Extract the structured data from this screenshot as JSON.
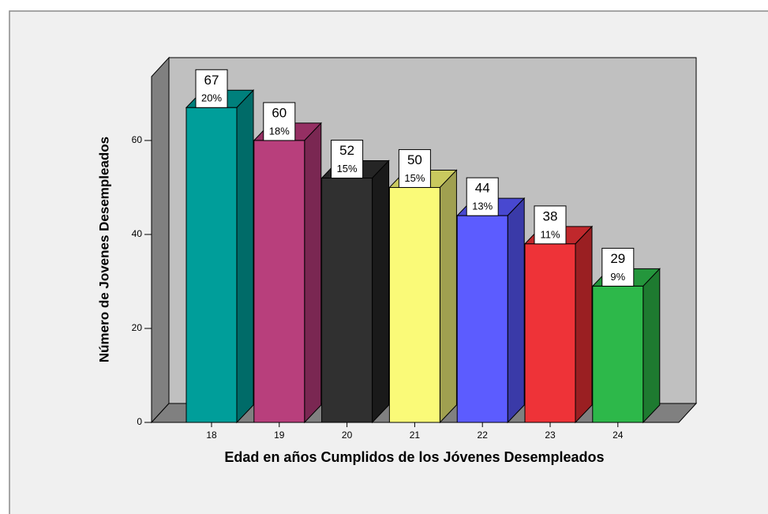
{
  "chart_data": {
    "type": "bar",
    "x_label": "Edad en años Cumplidos de los Jóvenes Desempleados",
    "y_label": "Número de Jovenes Desempleados",
    "categories": [
      "18",
      "19",
      "20",
      "21",
      "22",
      "23",
      "24"
    ],
    "values": [
      67,
      60,
      52,
      50,
      44,
      38,
      29
    ],
    "percent": {
      "values": [
        20,
        18,
        15,
        15,
        13,
        11,
        9
      ],
      "value_labels": [
        "20%",
        "18%",
        "15%",
        "15%",
        "13%",
        "11%",
        "9%"
      ]
    },
    "colors": [
      "#009e9a",
      "#b83f7c",
      "#303030",
      "#fafa78",
      "#5c5cff",
      "#ee3338",
      "#2db84a"
    ],
    "side_colors": [
      "#006b68",
      "#7a2752",
      "#1a1a1a",
      "#a0a050",
      "#3a3aa8",
      "#9a1f22",
      "#1e7a30"
    ],
    "top_colors": [
      "#00807c",
      "#952f63",
      "#252525",
      "#c9c95e",
      "#4848d0",
      "#c0282c",
      "#24963c"
    ],
    "ylim": [
      0,
      73.6
    ],
    "yticks": [
      0,
      20,
      40,
      60
    ]
  }
}
